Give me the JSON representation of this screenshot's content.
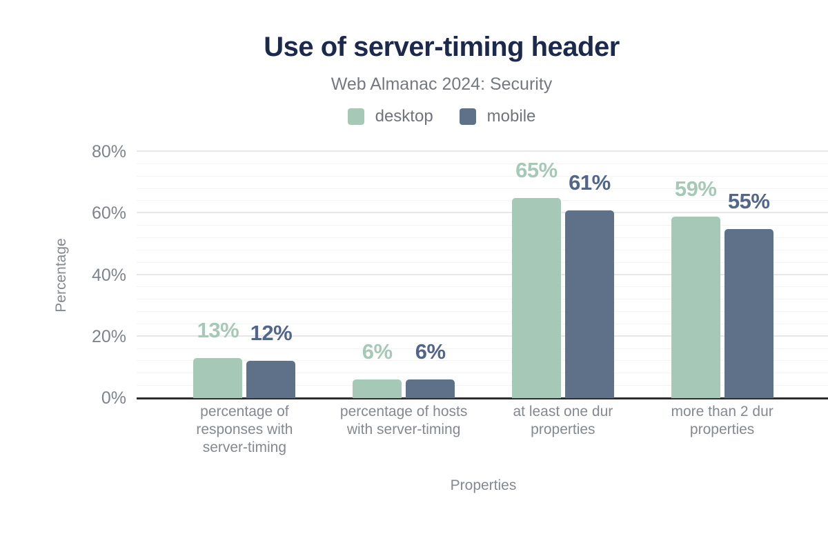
{
  "chart_data": {
    "type": "bar",
    "title": "Use of server-timing header",
    "subtitle": "Web Almanac 2024: Security",
    "xlabel": "Properties",
    "ylabel": "Percentage",
    "ylim": [
      0,
      80
    ],
    "y_tick_values": [
      0,
      20,
      40,
      60,
      80
    ],
    "y_tick_labels": [
      "0%",
      "20%",
      "40%",
      "60%",
      "80%"
    ],
    "y_minor_step": 4,
    "grid": true,
    "legend_position": "top",
    "axis_color": "#2d2d2d",
    "categories": [
      "percentage of\nresponses with\nserver-timing",
      "percentage of hosts\nwith server-timing",
      "at least one dur\nproperties",
      "more than 2 dur\nproperties"
    ],
    "series": [
      {
        "name": "desktop",
        "color": "#a5c9b6",
        "label_color": "#a5c9b6",
        "values": [
          13,
          6,
          65,
          59
        ],
        "labels": [
          "13%",
          "6%",
          "65%",
          "59%"
        ]
      },
      {
        "name": "mobile",
        "color": "#5f7189",
        "label_color": "#52658a",
        "values": [
          12,
          6,
          61,
          55
        ],
        "labels": [
          "12%",
          "6%",
          "61%",
          "55%"
        ]
      }
    ]
  }
}
